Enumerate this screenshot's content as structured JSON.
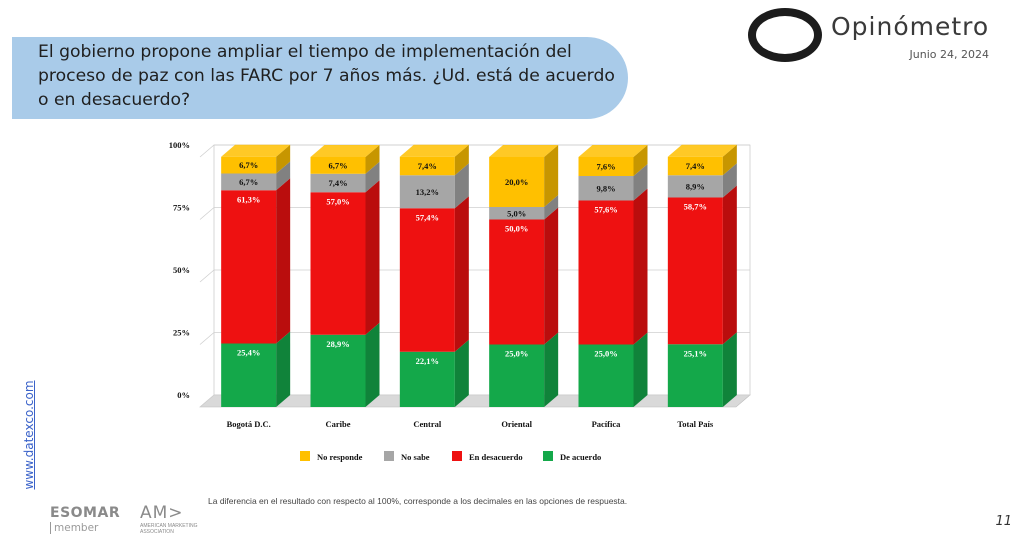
{
  "header": {
    "title": "El gobierno propone ampliar el tiempo de implementación del proceso de paz con las FARC por 7 años más. ¿Ud. está de acuerdo o en desacuerdo?",
    "brand": "Opinómetro",
    "date": "Junio 24, 2024"
  },
  "side_link": "www.datexco.com",
  "footer": {
    "note": "La diferencia en el resultado con respecto al 100%, corresponde a los decimales en las opciones de respuesta.",
    "esomar": "ESOMAR",
    "esomar_sub": "member",
    "ama": "AM>",
    "ama_sub": "AMERICAN MARKETING ASSOCIATION",
    "page": "11"
  },
  "chart_data": {
    "type": "bar",
    "stacked": true,
    "title": "",
    "xlabel": "",
    "ylabel": "",
    "ylim": [
      0,
      100
    ],
    "yticks": [
      "0%",
      "25%",
      "50%",
      "75%",
      "100%"
    ],
    "categories": [
      "Bogotá D.C.",
      "Caribe",
      "Central",
      "Oriental",
      "Pacífica",
      "Total País"
    ],
    "series": [
      {
        "name": "De acuerdo",
        "color": "#14a84a",
        "values": [
          25.4,
          28.9,
          22.1,
          25.0,
          25.0,
          25.1
        ],
        "labels": [
          "25,4%",
          "28,9%",
          "22,1%",
          "25,0%",
          "25,0%",
          "25,1%"
        ]
      },
      {
        "name": "En desacuerdo",
        "color": "#ee1111",
        "values": [
          61.3,
          57.0,
          57.4,
          50.0,
          57.6,
          58.7
        ],
        "labels": [
          "61,3%",
          "57,0%",
          "57,4%",
          "50,0%",
          "57,6%",
          "58,7%"
        ]
      },
      {
        "name": "No sabe",
        "color": "#a6a6a6",
        "values": [
          6.7,
          7.4,
          13.2,
          5.0,
          9.8,
          8.9
        ],
        "labels": [
          "6,7%",
          "7,4%",
          "13,2%",
          "5,0%",
          "9,8%",
          "8,9%"
        ]
      },
      {
        "name": "No responde",
        "color": "#ffc000",
        "values": [
          6.7,
          6.7,
          7.4,
          20.0,
          7.6,
          7.4
        ],
        "labels": [
          "6,7%",
          "6,7%",
          "7,4%",
          "20,0%",
          "7,6%",
          "7,4%"
        ]
      }
    ],
    "legend_order": [
      "No responde",
      "No sabe",
      "En desacuerdo",
      "De acuerdo"
    ],
    "legend_position": "bottom",
    "grid": true
  }
}
